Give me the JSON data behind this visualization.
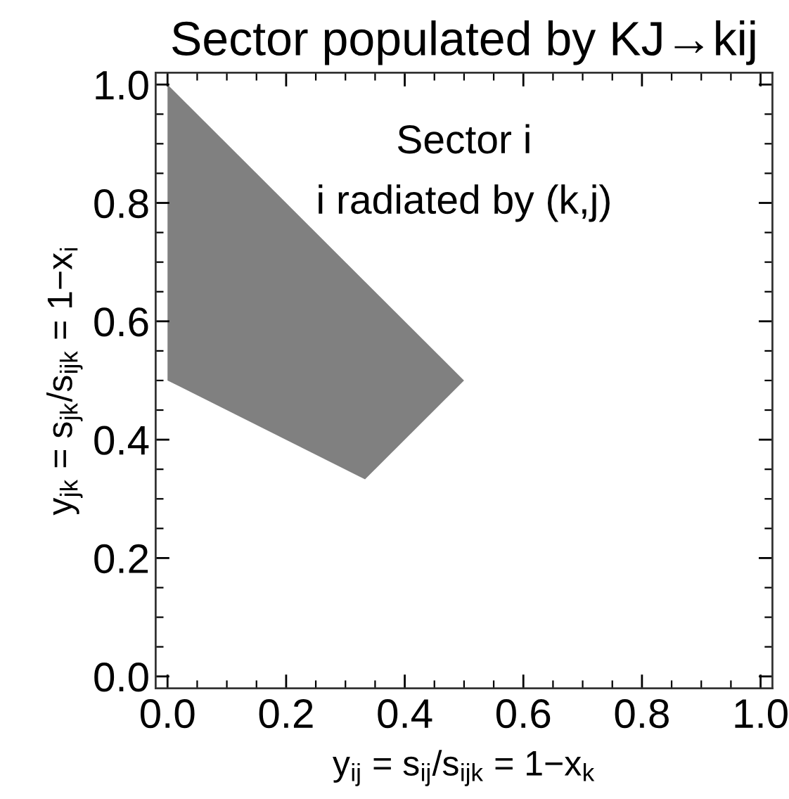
{
  "chart_data": {
    "type": "area",
    "title": "Sector populated by KJ→kij",
    "xlabel": "y$_{ij}$ = s$_{ij}$/s$_{ijk}$ = 1−x$_{k}$",
    "ylabel": "y$_{jk}$ = s$_{jk}$/s$_{ijk}$ = 1−x$_{i}$",
    "annotations": [
      "Sector i",
      "i radiated by (k,j)"
    ],
    "series": [
      {
        "color": "#808080",
        "x": [
          0,
          0.5,
          0.333,
          0
        ],
        "values": [
          1,
          0.5,
          0.333,
          0.5
        ]
      }
    ],
    "xlim": [
      -0.02,
      1.02
    ],
    "ylim": [
      -0.02,
      1.02
    ],
    "xticks": [
      {
        "value": 0,
        "label": "0.0"
      },
      {
        "value": 0.05,
        "label": null
      },
      {
        "value": 0.1,
        "label": null
      },
      {
        "value": 0.15,
        "label": null
      },
      0.2,
      {
        "value": 0.25,
        "label": null
      },
      {
        "value": 0.3,
        "label": null
      },
      {
        "value": 0.35,
        "label": null
      },
      0.4,
      {
        "value": 0.45,
        "label": null
      },
      {
        "value": 0.5,
        "label": null
      },
      {
        "value": 0.55,
        "label": null
      },
      0.6,
      {
        "value": 0.65,
        "label": null
      },
      {
        "value": 0.7,
        "label": null
      },
      {
        "value": 0.75,
        "label": null
      },
      0.8,
      {
        "value": 0.85,
        "label": null
      },
      {
        "value": 0.9,
        "label": null
      },
      {
        "value": 0.95,
        "label": null
      },
      {
        "value": 1,
        "label": "1.0"
      }
    ],
    "yticks": [
      {
        "value": 0,
        "label": "0.0"
      },
      {
        "value": 0.05,
        "label": null
      },
      {
        "value": 0.1,
        "label": null
      },
      {
        "value": 0.15,
        "label": null
      },
      0.2,
      {
        "value": 0.25,
        "label": null
      },
      {
        "value": 0.3,
        "label": null
      },
      {
        "value": 0.35,
        "label": null
      },
      0.4,
      {
        "value": 0.45,
        "label": null
      },
      {
        "value": 0.5,
        "label": null
      },
      {
        "value": 0.55,
        "label": null
      },
      0.6,
      {
        "value": 0.65,
        "label": null
      },
      {
        "value": 0.7,
        "label": null
      },
      {
        "value": 0.75,
        "label": null
      },
      0.8,
      {
        "value": 0.85,
        "label": null
      },
      {
        "value": 0.9,
        "label": null
      },
      {
        "value": 0.95,
        "label": null
      },
      {
        "value": 1,
        "label": "1.0"
      }
    ],
    "grid": false
  }
}
